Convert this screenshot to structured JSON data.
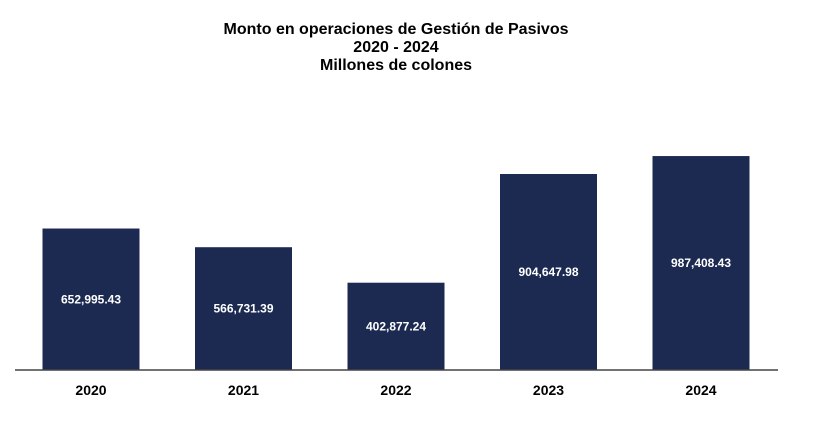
{
  "chart_data": {
    "type": "bar",
    "title": "Monto en operaciones de Gestión de Pasivos",
    "subtitle": "2020 - 2024",
    "units_line": "Millones de colones",
    "categories": [
      "2020",
      "2021",
      "2022",
      "2023",
      "2024"
    ],
    "values": [
      652995.43,
      566731.39,
      402877.24,
      904647.98,
      987408.43
    ],
    "value_labels": [
      "652,995.43",
      "566,731.39",
      "402,877.24",
      "904,647.98",
      "987,408.43"
    ],
    "xlabel": "",
    "ylabel": "",
    "ylim": [
      0,
      1200000
    ],
    "grid": false,
    "legend": "none",
    "bar_color": "#1c2a52",
    "label_color": "#ffffff",
    "axis_color": "#444444"
  }
}
